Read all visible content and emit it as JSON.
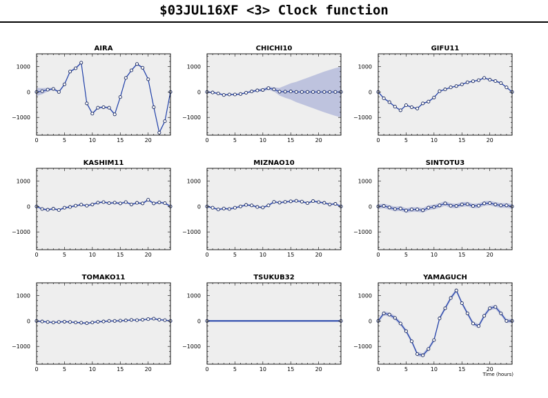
{
  "title": "$03JUL16XF <3>  Clock function",
  "x_axis_label": "Time (hours)",
  "colors": {
    "line": "#1f3fa8",
    "band": "#b8bedb",
    "panel_bg": "#eeeeee",
    "marker_fill": "#ffffff"
  },
  "chart_data": [
    {
      "type": "line",
      "title": "AIRA",
      "xlim": [
        0,
        24
      ],
      "ylim": [
        -1700,
        1500
      ],
      "xticks": [
        0,
        5,
        10,
        15,
        20
      ],
      "yticks": [
        -1000,
        0,
        1000
      ],
      "x": [
        0,
        1,
        2,
        3,
        4,
        5,
        6,
        7,
        8,
        9,
        10,
        11,
        12,
        13,
        14,
        15,
        16,
        17,
        18,
        19,
        20,
        21,
        22,
        23,
        24
      ],
      "y": [
        0,
        30,
        90,
        120,
        0,
        300,
        800,
        930,
        1150,
        -450,
        -850,
        -620,
        -600,
        -620,
        -880,
        -200,
        550,
        850,
        1100,
        950,
        500,
        -600,
        -1600,
        -1150,
        0
      ],
      "band": [
        160,
        120,
        70,
        40,
        40,
        40,
        40,
        40,
        40,
        40,
        40,
        40,
        40,
        40,
        40,
        40,
        40,
        40,
        40,
        40,
        40,
        40,
        40,
        40,
        40
      ]
    },
    {
      "type": "line",
      "title": "CHICHI10",
      "xlim": [
        0,
        24
      ],
      "ylim": [
        -1700,
        1500
      ],
      "xticks": [
        0,
        5,
        10,
        15,
        20
      ],
      "yticks": [
        -1000,
        0,
        1000
      ],
      "x": [
        0,
        1,
        2,
        3,
        4,
        5,
        6,
        7,
        8,
        9,
        10,
        11,
        12,
        13,
        14,
        15,
        16,
        17,
        18,
        19,
        20,
        21,
        22,
        23,
        24
      ],
      "y": [
        0,
        -20,
        -60,
        -120,
        -100,
        -100,
        -80,
        -30,
        20,
        60,
        80,
        150,
        100,
        10,
        10,
        20,
        0,
        0,
        0,
        0,
        0,
        0,
        0,
        0,
        0
      ],
      "band": [
        30,
        30,
        30,
        30,
        30,
        30,
        30,
        30,
        40,
        50,
        60,
        70,
        80,
        150,
        240,
        320,
        400,
        480,
        560,
        640,
        720,
        800,
        870,
        940,
        1000
      ]
    },
    {
      "type": "line",
      "title": "GIFU11",
      "xlim": [
        0,
        24
      ],
      "ylim": [
        -1700,
        1500
      ],
      "xticks": [
        0,
        5,
        10,
        15,
        20
      ],
      "yticks": [
        -1000,
        0,
        1000
      ],
      "x": [
        0,
        1,
        2,
        3,
        4,
        5,
        6,
        7,
        8,
        9,
        10,
        11,
        12,
        13,
        14,
        15,
        16,
        17,
        18,
        19,
        20,
        21,
        22,
        23,
        24
      ],
      "y": [
        0,
        -250,
        -400,
        -580,
        -720,
        -520,
        -600,
        -650,
        -450,
        -380,
        -220,
        30,
        100,
        180,
        230,
        300,
        380,
        420,
        460,
        550,
        480,
        430,
        350,
        180,
        0
      ],
      "band": [
        30,
        30,
        30,
        30,
        30,
        30,
        30,
        30,
        30,
        30,
        30,
        30,
        30,
        30,
        30,
        30,
        30,
        30,
        30,
        30,
        30,
        30,
        30,
        30,
        30
      ]
    },
    {
      "type": "line",
      "title": "KASHIM11",
      "xlim": [
        0,
        24
      ],
      "ylim": [
        -1700,
        1500
      ],
      "xticks": [
        0,
        5,
        10,
        15,
        20
      ],
      "yticks": [
        -1000,
        0,
        1000
      ],
      "x": [
        0,
        1,
        2,
        3,
        4,
        5,
        6,
        7,
        8,
        9,
        10,
        11,
        12,
        13,
        14,
        15,
        16,
        17,
        18,
        19,
        20,
        21,
        22,
        23,
        24
      ],
      "y": [
        0,
        -100,
        -130,
        -90,
        -140,
        -50,
        -20,
        30,
        70,
        30,
        80,
        150,
        170,
        130,
        150,
        120,
        170,
        80,
        140,
        120,
        260,
        120,
        160,
        130,
        0
      ],
      "band": [
        40,
        40,
        40,
        40,
        40,
        40,
        40,
        40,
        40,
        40,
        40,
        40,
        40,
        40,
        40,
        40,
        40,
        40,
        40,
        40,
        40,
        40,
        40,
        40,
        40
      ]
    },
    {
      "type": "line",
      "title": "MIZNAO10",
      "xlim": [
        0,
        24
      ],
      "ylim": [
        -1700,
        1500
      ],
      "xticks": [
        0,
        5,
        10,
        15,
        20
      ],
      "yticks": [
        -1000,
        0,
        1000
      ],
      "x": [
        0,
        1,
        2,
        3,
        4,
        5,
        6,
        7,
        8,
        9,
        10,
        11,
        12,
        13,
        14,
        15,
        16,
        17,
        18,
        19,
        20,
        21,
        22,
        23,
        24
      ],
      "y": [
        0,
        -50,
        -120,
        -80,
        -100,
        -50,
        0,
        60,
        40,
        -20,
        -40,
        40,
        180,
        150,
        180,
        200,
        220,
        190,
        130,
        210,
        170,
        140,
        80,
        100,
        0
      ],
      "band": [
        40,
        40,
        40,
        40,
        40,
        40,
        40,
        40,
        40,
        40,
        40,
        40,
        40,
        40,
        40,
        40,
        40,
        40,
        40,
        40,
        40,
        40,
        40,
        40,
        40
      ]
    },
    {
      "type": "line",
      "title": "SINTOTU3",
      "xlim": [
        0,
        24
      ],
      "ylim": [
        -1700,
        1500
      ],
      "xticks": [
        0,
        5,
        10,
        15,
        20
      ],
      "yticks": [
        -1000,
        0,
        1000
      ],
      "x": [
        0,
        1,
        2,
        3,
        4,
        5,
        6,
        7,
        8,
        9,
        10,
        11,
        12,
        13,
        14,
        15,
        16,
        17,
        18,
        19,
        20,
        21,
        22,
        23,
        24
      ],
      "y": [
        0,
        20,
        -40,
        -100,
        -80,
        -160,
        -120,
        -120,
        -150,
        -50,
        -20,
        40,
        120,
        30,
        20,
        80,
        90,
        20,
        30,
        120,
        130,
        80,
        40,
        40,
        0
      ],
      "band": [
        90,
        90,
        90,
        90,
        90,
        90,
        90,
        90,
        90,
        90,
        90,
        90,
        90,
        90,
        90,
        90,
        90,
        90,
        90,
        90,
        90,
        90,
        90,
        90,
        90
      ]
    },
    {
      "type": "line",
      "title": "TOMAKO11",
      "xlim": [
        0,
        24
      ],
      "ylim": [
        -1700,
        1500
      ],
      "xticks": [
        0,
        5,
        10,
        15,
        20
      ],
      "yticks": [
        -1000,
        0,
        1000
      ],
      "x": [
        0,
        1,
        2,
        3,
        4,
        5,
        6,
        7,
        8,
        9,
        10,
        11,
        12,
        13,
        14,
        15,
        16,
        17,
        18,
        19,
        20,
        21,
        22,
        23,
        24
      ],
      "y": [
        0,
        -20,
        -40,
        -60,
        -40,
        -30,
        -40,
        -60,
        -70,
        -90,
        -60,
        -30,
        -20,
        0,
        0,
        10,
        20,
        40,
        30,
        50,
        70,
        90,
        50,
        30,
        0
      ],
      "band": [
        30,
        30,
        30,
        30,
        30,
        30,
        30,
        30,
        30,
        30,
        30,
        30,
        30,
        30,
        30,
        30,
        30,
        30,
        30,
        30,
        30,
        30,
        30,
        30,
        30
      ]
    },
    {
      "type": "line",
      "title": "TSUKUB32",
      "xlim": [
        0,
        24
      ],
      "ylim": [
        -1700,
        1500
      ],
      "xticks": [
        0,
        5,
        10,
        15,
        20
      ],
      "yticks": [
        -1000,
        0,
        1000
      ],
      "x": [
        0,
        24
      ],
      "y": [
        0,
        0
      ],
      "band": [
        0,
        0
      ]
    },
    {
      "type": "line",
      "title": "YAMAGUCH",
      "xlim": [
        0,
        24
      ],
      "ylim": [
        -1700,
        1500
      ],
      "xticks": [
        0,
        5,
        10,
        15,
        20
      ],
      "yticks": [
        -1000,
        0,
        1000
      ],
      "x": [
        0,
        1,
        2,
        3,
        4,
        5,
        6,
        7,
        8,
        9,
        10,
        11,
        12,
        13,
        14,
        15,
        16,
        17,
        18,
        19,
        20,
        21,
        22,
        23,
        24
      ],
      "y": [
        0,
        300,
        250,
        120,
        -100,
        -400,
        -800,
        -1300,
        -1350,
        -1100,
        -750,
        100,
        500,
        900,
        1200,
        700,
        300,
        -100,
        -200,
        200,
        500,
        550,
        300,
        0,
        0
      ],
      "band": [
        80,
        80,
        80,
        80,
        80,
        80,
        80,
        80,
        80,
        80,
        80,
        80,
        80,
        80,
        80,
        80,
        80,
        80,
        80,
        80,
        80,
        80,
        80,
        80,
        80
      ]
    }
  ]
}
